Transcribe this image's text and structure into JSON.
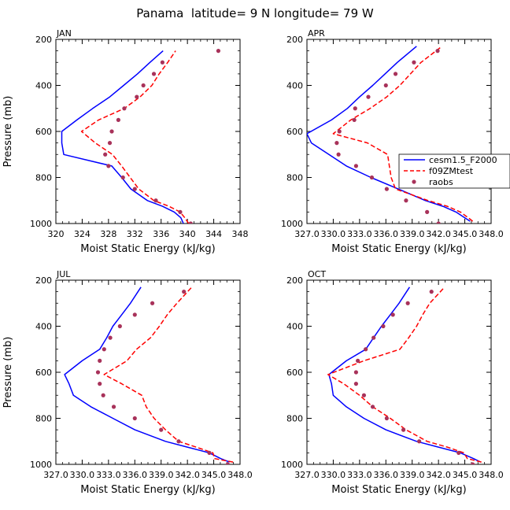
{
  "page_title": "Panama  latitude= 9 N longitude= 79 W",
  "legend": {
    "entries": [
      {
        "label": "cesm1.5_F2000",
        "color": "#0000ff",
        "style": "solid"
      },
      {
        "label": "f09ZMtest",
        "color": "#ff0000",
        "style": "dashed"
      },
      {
        "label": "raobs",
        "color": "#a8325a",
        "style": "dots"
      }
    ]
  },
  "chart_data": [
    {
      "type": "line",
      "panel_label": "JAN",
      "xlabel": "Moist Static Energy (kJ/kg)",
      "ylabel": "Pressure (mb)",
      "xlim": [
        320,
        348
      ],
      "xticks": [
        320,
        324,
        328,
        332,
        336,
        340,
        344,
        348
      ],
      "xtick_labels": [
        "320",
        "324",
        "328",
        "332",
        "336",
        "340",
        "344",
        "348"
      ],
      "ylim": [
        1000,
        200
      ],
      "yticks": [
        200,
        400,
        600,
        800,
        1000
      ],
      "series": [
        {
          "name": "cesm1.5_F2000",
          "pressure": [
            1000,
            975,
            950,
            925,
            900,
            850,
            800,
            750,
            700,
            650,
            600,
            550,
            500,
            450,
            400,
            350,
            300,
            250
          ],
          "values": [
            339.4,
            339.0,
            338.0,
            336.2,
            333.9,
            331.4,
            330.0,
            328.5,
            321.2,
            320.9,
            320.9,
            323.2,
            325.6,
            328.2,
            330.3,
            332.4,
            334.3,
            336.3
          ]
        },
        {
          "name": "f09ZMtest",
          "pressure": [
            1000,
            975,
            950,
            925,
            900,
            850,
            800,
            750,
            700,
            650,
            600,
            550,
            500,
            450,
            400,
            350,
            300,
            250
          ],
          "values": [
            340.2,
            339.6,
            338.9,
            337.2,
            334.9,
            332.6,
            331.3,
            330.0,
            328.6,
            326.0,
            323.9,
            326.5,
            330.4,
            332.8,
            334.6,
            335.7,
            337.0,
            338.2
          ]
        },
        {
          "name": "raobs",
          "pressure": [
            1000,
            950,
            900,
            850,
            800,
            750,
            700,
            650,
            600,
            550,
            500,
            450,
            400,
            350,
            300,
            250
          ],
          "values": [
            340.5,
            338.9,
            335.2,
            332.0,
            330.2,
            328.0,
            327.5,
            328.2,
            328.5,
            329.5,
            330.4,
            332.3,
            333.3,
            334.9,
            336.2,
            344.7
          ]
        }
      ]
    },
    {
      "type": "line",
      "panel_label": "APR",
      "xlabel": "Moist Static Energy (kJ/kg)",
      "ylabel": "",
      "xlim": [
        327,
        348
      ],
      "xticks": [
        327,
        330,
        333,
        336,
        339,
        342,
        345,
        348
      ],
      "xtick_labels": [
        "327.0",
        "330.0",
        "333.0",
        "336.0",
        "339.0",
        "342.0",
        "345.0",
        "348.0"
      ],
      "ylim": [
        1000,
        200
      ],
      "yticks": [
        200,
        400,
        600,
        800,
        1000
      ],
      "series": [
        {
          "name": "cesm1.5_F2000",
          "pressure": [
            990,
            975,
            950,
            925,
            900,
            850,
            800,
            750,
            700,
            650,
            610,
            550,
            500,
            450,
            400,
            350,
            300,
            230
          ],
          "values": [
            345.6,
            345.0,
            344.0,
            342.5,
            340.5,
            337.4,
            334.3,
            331.5,
            329.5,
            327.5,
            327.0,
            329.8,
            331.6,
            333.0,
            334.5,
            335.9,
            337.3,
            339.5
          ]
        },
        {
          "name": "f09ZMtest",
          "pressure": [
            990,
            975,
            950,
            925,
            900,
            850,
            800,
            750,
            700,
            650,
            610,
            550,
            500,
            450,
            400,
            350,
            300,
            230
          ],
          "values": [
            345.9,
            345.4,
            344.5,
            343.0,
            340.8,
            337.1,
            336.6,
            336.4,
            336.2,
            333.9,
            330.0,
            332.0,
            334.2,
            336.1,
            337.6,
            338.8,
            340.0,
            342.4
          ]
        },
        {
          "name": "raobs",
          "pressure": [
            1000,
            950,
            900,
            850,
            800,
            750,
            700,
            650,
            600,
            550,
            500,
            450,
            400,
            350,
            300,
            250
          ],
          "values": [
            342.0,
            340.7,
            338.3,
            336.1,
            334.4,
            332.6,
            330.6,
            330.4,
            330.7,
            332.4,
            332.5,
            334.0,
            336.0,
            337.1,
            339.2,
            341.9
          ]
        }
      ]
    },
    {
      "type": "line",
      "panel_label": "JUL",
      "xlabel": "Moist Static Energy (kJ/kg)",
      "ylabel": "Pressure (mb)",
      "xlim": [
        327,
        348
      ],
      "xticks": [
        327,
        330,
        333,
        336,
        339,
        342,
        345,
        348
      ],
      "xtick_labels": [
        "327.0",
        "330.0",
        "333.0",
        "336.0",
        "339.0",
        "342.0",
        "345.0",
        "348.0"
      ],
      "ylim": [
        1000,
        200
      ],
      "yticks": [
        200,
        400,
        600,
        800,
        1000
      ],
      "series": [
        {
          "name": "cesm1.5_F2000",
          "pressure": [
            990,
            975,
            950,
            925,
            900,
            850,
            800,
            750,
            700,
            650,
            610,
            550,
            500,
            450,
            400,
            350,
            300,
            230
          ],
          "values": [
            346.8,
            345.8,
            344.5,
            342.0,
            339.5,
            336.0,
            333.5,
            331.0,
            329.0,
            328.5,
            328.0,
            330.0,
            332.0,
            332.8,
            333.5,
            334.5,
            335.5,
            336.7
          ]
        },
        {
          "name": "f09ZMtest",
          "pressure": [
            990,
            975,
            950,
            925,
            900,
            850,
            800,
            750,
            700,
            650,
            610,
            550,
            500,
            450,
            400,
            350,
            300,
            230
          ],
          "values": [
            347.2,
            345.1,
            344.9,
            343.0,
            341.0,
            339.5,
            338.2,
            337.3,
            336.8,
            334.5,
            332.5,
            335.1,
            336.2,
            337.8,
            338.8,
            339.7,
            340.8,
            342.5
          ]
        },
        {
          "name": "raobs",
          "pressure": [
            1000,
            950,
            900,
            850,
            800,
            750,
            700,
            650,
            600,
            550,
            500,
            450,
            400,
            350,
            300,
            250
          ],
          "values": [
            346.6,
            344.5,
            341.0,
            339.0,
            336.0,
            333.6,
            332.4,
            332.0,
            331.8,
            332.0,
            332.5,
            333.2,
            334.3,
            336.0,
            338.0,
            341.6
          ]
        }
      ]
    },
    {
      "type": "line",
      "panel_label": "OCT",
      "xlabel": "Moist Static Energy (kJ/kg)",
      "ylabel": "",
      "xlim": [
        327,
        348
      ],
      "xticks": [
        327,
        330,
        333,
        336,
        339,
        342,
        345,
        348
      ],
      "xtick_labels": [
        "327.0",
        "330.0",
        "333.0",
        "336.0",
        "339.0",
        "342.0",
        "345.0",
        "348.0"
      ],
      "ylim": [
        1000,
        200
      ],
      "yticks": [
        200,
        400,
        600,
        800,
        1000
      ],
      "series": [
        {
          "name": "cesm1.5_F2000",
          "pressure": [
            990,
            975,
            950,
            925,
            900,
            850,
            800,
            750,
            700,
            650,
            610,
            550,
            500,
            450,
            400,
            350,
            300,
            230
          ],
          "values": [
            346.8,
            346.0,
            344.5,
            342.0,
            339.5,
            336.0,
            333.5,
            331.5,
            330.0,
            329.8,
            329.5,
            331.5,
            333.7,
            334.6,
            335.5,
            336.5,
            337.5,
            338.7
          ]
        },
        {
          "name": "f09ZMtest",
          "pressure": [
            990,
            975,
            950,
            925,
            900,
            850,
            800,
            750,
            700,
            650,
            610,
            550,
            500,
            450,
            400,
            350,
            300,
            230
          ],
          "values": [
            346.9,
            345.3,
            344.9,
            343.0,
            340.7,
            338.3,
            336.5,
            334.5,
            333.0,
            331.2,
            329.4,
            333.5,
            337.6,
            338.6,
            339.5,
            340.2,
            341.0,
            342.7
          ]
        },
        {
          "name": "raobs",
          "pressure": [
            1000,
            950,
            900,
            850,
            800,
            750,
            700,
            650,
            600,
            550,
            500,
            450,
            400,
            350,
            300,
            250
          ],
          "values": [
            345.9,
            344.3,
            339.8,
            338.0,
            336.1,
            334.5,
            333.5,
            332.6,
            332.6,
            332.8,
            333.7,
            334.6,
            335.7,
            336.8,
            338.5,
            341.2
          ]
        }
      ]
    }
  ]
}
